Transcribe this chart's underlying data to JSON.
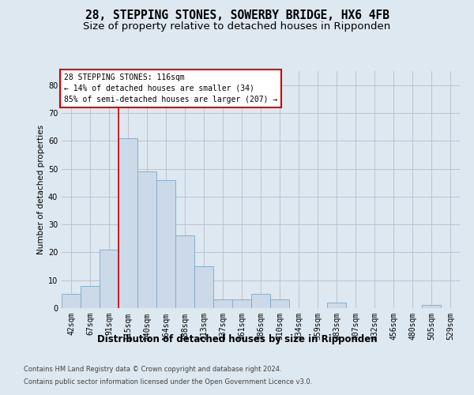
{
  "title": "28, STEPPING STONES, SOWERBY BRIDGE, HX6 4FB",
  "subtitle": "Size of property relative to detached houses in Ripponden",
  "xlabel": "Distribution of detached houses by size in Ripponden",
  "ylabel": "Number of detached properties",
  "footer1": "Contains HM Land Registry data © Crown copyright and database right 2024.",
  "footer2": "Contains public sector information licensed under the Open Government Licence v3.0.",
  "categories": [
    "42sqm",
    "67sqm",
    "91sqm",
    "115sqm",
    "140sqm",
    "164sqm",
    "188sqm",
    "213sqm",
    "237sqm",
    "261sqm",
    "286sqm",
    "310sqm",
    "334sqm",
    "359sqm",
    "383sqm",
    "407sqm",
    "432sqm",
    "456sqm",
    "480sqm",
    "505sqm",
    "529sqm"
  ],
  "values": [
    5,
    8,
    21,
    61,
    49,
    46,
    26,
    15,
    3,
    3,
    5,
    3,
    0,
    0,
    2,
    0,
    0,
    0,
    0,
    1,
    0
  ],
  "bar_color": "#ccd9e8",
  "bar_edge_color": "#7aaac8",
  "bar_linewidth": 0.6,
  "grid_color": "#bbbbcc",
  "bg_color": "#dde8f0",
  "vline_color": "#cc0000",
  "vline_x_index": 3,
  "annotation_text": "28 STEPPING STONES: 116sqm\n← 14% of detached houses are smaller (34)\n85% of semi-detached houses are larger (207) →",
  "annotation_box_color": "#ffffff",
  "annotation_box_edge_color": "#cc0000",
  "ylim": [
    0,
    85
  ],
  "yticks": [
    0,
    10,
    20,
    30,
    40,
    50,
    60,
    70,
    80
  ],
  "title_fontsize": 10.5,
  "subtitle_fontsize": 9.5,
  "xlabel_fontsize": 8.5,
  "ylabel_fontsize": 7.5,
  "tick_fontsize": 7,
  "annotation_fontsize": 7,
  "footer_fontsize": 6
}
